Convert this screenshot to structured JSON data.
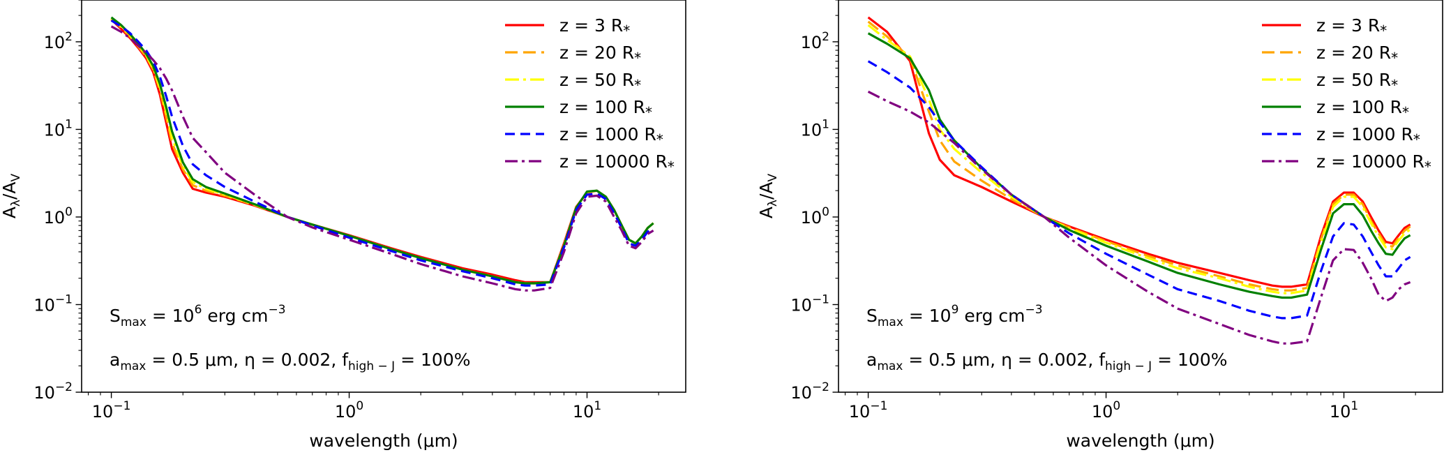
{
  "chart_data": [
    {
      "type": "line",
      "xscale": "log",
      "yscale": "log",
      "xlim": [
        0.075,
        26
      ],
      "ylim": [
        0.01,
        300
      ],
      "xlabel": "wavelength (μm)",
      "ylabel": {
        "base": "A",
        "sub1": "λ",
        "mid": "/A",
        "sub2": "V"
      },
      "xticks": [
        {
          "base": "10",
          "exp": "−1",
          "value": 0.1
        },
        {
          "base": "10",
          "exp": "0",
          "value": 1
        },
        {
          "base": "10",
          "exp": "1",
          "value": 10
        }
      ],
      "yticks": [
        {
          "base": "10",
          "exp": "−2",
          "value": 0.01
        },
        {
          "base": "10",
          "exp": "−1",
          "value": 0.1
        },
        {
          "base": "10",
          "exp": "0",
          "value": 1
        },
        {
          "base": "10",
          "exp": "1",
          "value": 10
        },
        {
          "base": "10",
          "exp": "2",
          "value": 100
        }
      ],
      "annotation1": {
        "s": "S",
        "sub": "max",
        "eq": " = 10",
        "sup": "6",
        "rest": " erg cm",
        "sup2": "−3"
      },
      "annotation2": {
        "a": "a",
        "asub": "max",
        "aval": " = 0.5 μm, η = 0.002, f",
        "fsub": "high − J",
        "fval": " = 100%"
      },
      "legend_position": "upper-right",
      "series": [
        {
          "name": "z = 3 R*",
          "label_main": "z = 3 R",
          "label_star": "*",
          "color": "#ff0000",
          "dash": "solid",
          "x": [
            0.1,
            0.11,
            0.12,
            0.13,
            0.14,
            0.15,
            0.16,
            0.17,
            0.18,
            0.2,
            0.22,
            0.25,
            0.3,
            0.4,
            0.55,
            0.7,
            1,
            1.5,
            2,
            3,
            4,
            5,
            5.5,
            6,
            7,
            8,
            9,
            10,
            11,
            12,
            13,
            14,
            15,
            16,
            17,
            18,
            19
          ],
          "y": [
            180,
            140,
            110,
            85,
            65,
            45,
            25,
            12,
            6,
            3.2,
            2.1,
            1.9,
            1.7,
            1.35,
            1.0,
            0.82,
            0.62,
            0.44,
            0.35,
            0.26,
            0.22,
            0.19,
            0.18,
            0.18,
            0.18,
            0.5,
            1.3,
            1.9,
            2.0,
            1.7,
            1.2,
            0.8,
            0.55,
            0.5,
            0.6,
            0.75,
            0.85
          ]
        },
        {
          "name": "z = 20 R*",
          "label_main": "z = 20 R",
          "label_star": "*",
          "color": "#ffa500",
          "dash": "18,8",
          "x": [
            0.1,
            0.11,
            0.12,
            0.13,
            0.14,
            0.15,
            0.16,
            0.17,
            0.18,
            0.2,
            0.22,
            0.25,
            0.3,
            0.4,
            0.55,
            0.7,
            1,
            1.5,
            2,
            3,
            4,
            5,
            5.5,
            6,
            7,
            8,
            9,
            10,
            11,
            12,
            13,
            14,
            15,
            16,
            17,
            18,
            19
          ],
          "y": [
            182,
            145,
            115,
            88,
            68,
            48,
            28,
            14,
            7,
            3.5,
            2.3,
            2.0,
            1.75,
            1.37,
            1.0,
            0.82,
            0.61,
            0.43,
            0.34,
            0.25,
            0.21,
            0.18,
            0.175,
            0.175,
            0.18,
            0.48,
            1.28,
            1.92,
            2.0,
            1.7,
            1.2,
            0.8,
            0.55,
            0.5,
            0.6,
            0.75,
            0.85
          ]
        },
        {
          "name": "z = 50 R*",
          "label_main": "z = 50 R",
          "label_star": "*",
          "color": "#ffff00",
          "dash": "20,6,4,6",
          "x": [
            0.1,
            0.11,
            0.12,
            0.13,
            0.14,
            0.15,
            0.16,
            0.17,
            0.18,
            0.2,
            0.22,
            0.25,
            0.3,
            0.4,
            0.55,
            0.7,
            1,
            1.5,
            2,
            3,
            4,
            5,
            5.5,
            6,
            7,
            8,
            9,
            10,
            11,
            12,
            13,
            14,
            15,
            16,
            17,
            18,
            19
          ],
          "y": [
            185,
            150,
            118,
            92,
            70,
            50,
            30,
            16,
            8,
            3.8,
            2.5,
            2.1,
            1.8,
            1.38,
            1.0,
            0.82,
            0.61,
            0.43,
            0.34,
            0.25,
            0.21,
            0.18,
            0.175,
            0.175,
            0.18,
            0.47,
            1.27,
            1.93,
            2.0,
            1.7,
            1.2,
            0.8,
            0.55,
            0.5,
            0.6,
            0.75,
            0.85
          ]
        },
        {
          "name": "z = 100 R*",
          "label_main": "z = 100 R",
          "label_star": "*",
          "color": "#008000",
          "dash": "solid",
          "x": [
            0.1,
            0.11,
            0.12,
            0.13,
            0.14,
            0.15,
            0.16,
            0.17,
            0.18,
            0.2,
            0.22,
            0.25,
            0.3,
            0.4,
            0.55,
            0.7,
            1,
            1.5,
            2,
            3,
            4,
            5,
            5.5,
            6,
            7,
            8,
            9,
            10,
            11,
            12,
            13,
            14,
            15,
            16,
            17,
            18,
            19
          ],
          "y": [
            190,
            155,
            122,
            95,
            73,
            53,
            33,
            18,
            9.5,
            4.2,
            2.7,
            2.2,
            1.85,
            1.4,
            1.0,
            0.82,
            0.61,
            0.43,
            0.34,
            0.25,
            0.21,
            0.18,
            0.175,
            0.175,
            0.18,
            0.47,
            1.27,
            1.95,
            2.0,
            1.7,
            1.2,
            0.8,
            0.55,
            0.5,
            0.6,
            0.75,
            0.85
          ]
        },
        {
          "name": "z = 1000 R*",
          "label_main": "z = 1000 R",
          "label_star": "*",
          "color": "#0000ff",
          "dash": "14,8",
          "x": [
            0.1,
            0.11,
            0.12,
            0.13,
            0.14,
            0.15,
            0.16,
            0.17,
            0.18,
            0.2,
            0.22,
            0.25,
            0.3,
            0.4,
            0.55,
            0.7,
            1,
            1.5,
            2,
            3,
            4,
            5,
            5.5,
            6,
            7,
            8,
            9,
            10,
            11,
            12,
            13,
            14,
            15,
            16,
            17,
            18,
            19
          ],
          "y": [
            175,
            150,
            125,
            100,
            80,
            60,
            40,
            24,
            14,
            6.5,
            4.0,
            3.0,
            2.2,
            1.5,
            1.0,
            0.8,
            0.58,
            0.41,
            0.32,
            0.24,
            0.2,
            0.17,
            0.165,
            0.165,
            0.17,
            0.45,
            1.2,
            1.8,
            1.85,
            1.6,
            1.1,
            0.75,
            0.5,
            0.47,
            0.55,
            0.68,
            0.75
          ]
        },
        {
          "name": "z = 10000 R*",
          "label_main": "z = 10000 R",
          "label_star": "*",
          "color": "#800080",
          "dash": "18,6,4,6",
          "x": [
            0.1,
            0.11,
            0.12,
            0.13,
            0.14,
            0.15,
            0.16,
            0.17,
            0.18,
            0.2,
            0.22,
            0.25,
            0.3,
            0.4,
            0.55,
            0.7,
            1,
            1.5,
            2,
            3,
            4,
            5,
            5.5,
            6,
            7,
            8,
            9,
            10,
            11,
            12,
            13,
            14,
            15,
            16,
            17,
            18,
            19
          ],
          "y": [
            150,
            130,
            110,
            90,
            75,
            62,
            50,
            38,
            28,
            14,
            8,
            5.5,
            3.2,
            1.8,
            1.0,
            0.76,
            0.55,
            0.38,
            0.29,
            0.21,
            0.175,
            0.15,
            0.145,
            0.145,
            0.155,
            0.4,
            1.1,
            1.7,
            1.75,
            1.5,
            1.0,
            0.7,
            0.47,
            0.44,
            0.52,
            0.64,
            0.7
          ]
        }
      ]
    },
    {
      "type": "line",
      "xscale": "log",
      "yscale": "log",
      "xlim": [
        0.075,
        26
      ],
      "ylim": [
        0.01,
        300
      ],
      "xlabel": "wavelength (μm)",
      "ylabel": {
        "base": "A",
        "sub1": "λ",
        "mid": "/A",
        "sub2": "V"
      },
      "xticks": [
        {
          "base": "10",
          "exp": "−1",
          "value": 0.1
        },
        {
          "base": "10",
          "exp": "0",
          "value": 1
        },
        {
          "base": "10",
          "exp": "1",
          "value": 10
        }
      ],
      "yticks": [
        {
          "base": "10",
          "exp": "−2",
          "value": 0.01
        },
        {
          "base": "10",
          "exp": "−1",
          "value": 0.1
        },
        {
          "base": "10",
          "exp": "0",
          "value": 1
        },
        {
          "base": "10",
          "exp": "1",
          "value": 10
        },
        {
          "base": "10",
          "exp": "2",
          "value": 100
        }
      ],
      "annotation1": {
        "s": "S",
        "sub": "max",
        "eq": " = 10",
        "sup": "9",
        "rest": " erg cm",
        "sup2": "−3"
      },
      "annotation2": {
        "a": "a",
        "asub": "max",
        "aval": " = 0.5 μm, η = 0.002, f",
        "fsub": "high − J",
        "fval": " = 100%"
      },
      "legend_position": "upper-right",
      "series": [
        {
          "name": "z = 3 R*",
          "label_main": "z = 3 R",
          "label_star": "*",
          "color": "#ff0000",
          "dash": "solid",
          "x": [
            0.1,
            0.12,
            0.15,
            0.18,
            0.2,
            0.23,
            0.3,
            0.4,
            0.55,
            0.7,
            1,
            1.5,
            2,
            3,
            4,
            5,
            5.5,
            6,
            7,
            8,
            9,
            10,
            11,
            12,
            13,
            14,
            15,
            16,
            17,
            18,
            19
          ],
          "y": [
            190,
            130,
            60,
            9,
            4.5,
            3.0,
            2.2,
            1.5,
            1.0,
            0.78,
            0.55,
            0.38,
            0.3,
            0.23,
            0.19,
            0.165,
            0.16,
            0.16,
            0.17,
            0.6,
            1.5,
            1.9,
            1.9,
            1.5,
            1.0,
            0.7,
            0.52,
            0.5,
            0.62,
            0.75,
            0.82
          ]
        },
        {
          "name": "z = 20 R*",
          "label_main": "z = 20 R",
          "label_star": "*",
          "color": "#ffa500",
          "dash": "18,8",
          "x": [
            0.1,
            0.12,
            0.15,
            0.18,
            0.2,
            0.23,
            0.3,
            0.4,
            0.55,
            0.7,
            1,
            1.5,
            2,
            3,
            4,
            5,
            5.5,
            6,
            7,
            8,
            9,
            10,
            11,
            12,
            13,
            14,
            15,
            16,
            17,
            18,
            19
          ],
          "y": [
            170,
            115,
            65,
            16,
            7.5,
            4.3,
            2.6,
            1.6,
            1.0,
            0.76,
            0.53,
            0.36,
            0.28,
            0.21,
            0.17,
            0.15,
            0.145,
            0.145,
            0.155,
            0.55,
            1.4,
            1.8,
            1.8,
            1.4,
            0.9,
            0.65,
            0.48,
            0.46,
            0.58,
            0.7,
            0.78
          ]
        },
        {
          "name": "z = 50 R*",
          "label_main": "z = 50 R",
          "label_star": "*",
          "color": "#ffff00",
          "dash": "20,6,4,6",
          "x": [
            0.1,
            0.12,
            0.15,
            0.18,
            0.2,
            0.23,
            0.3,
            0.4,
            0.55,
            0.7,
            1,
            1.5,
            2,
            3,
            4,
            5,
            5.5,
            6,
            7,
            8,
            9,
            10,
            11,
            12,
            13,
            14,
            15,
            16,
            17,
            18,
            19
          ],
          "y": [
            155,
            105,
            68,
            22,
            10,
            6,
            3.2,
            1.7,
            1.0,
            0.74,
            0.51,
            0.34,
            0.26,
            0.2,
            0.16,
            0.14,
            0.135,
            0.135,
            0.145,
            0.5,
            1.3,
            1.7,
            1.7,
            1.3,
            0.85,
            0.6,
            0.45,
            0.43,
            0.54,
            0.65,
            0.72
          ]
        },
        {
          "name": "z = 100 R*",
          "label_main": "z = 100 R",
          "label_star": "*",
          "color": "#008000",
          "dash": "solid",
          "x": [
            0.1,
            0.12,
            0.15,
            0.18,
            0.2,
            0.23,
            0.3,
            0.4,
            0.55,
            0.7,
            1,
            1.5,
            2,
            3,
            4,
            5,
            5.5,
            6,
            7,
            8,
            9,
            10,
            11,
            12,
            13,
            14,
            15,
            16,
            17,
            18,
            19
          ],
          "y": [
            125,
            95,
            65,
            28,
            13,
            7.5,
            3.6,
            1.8,
            1.0,
            0.71,
            0.47,
            0.31,
            0.23,
            0.17,
            0.14,
            0.125,
            0.12,
            0.12,
            0.13,
            0.42,
            1.1,
            1.4,
            1.4,
            1.05,
            0.7,
            0.5,
            0.38,
            0.37,
            0.47,
            0.57,
            0.62
          ]
        },
        {
          "name": "z = 1000 R*",
          "label_main": "z = 1000 R",
          "label_star": "*",
          "color": "#0000ff",
          "dash": "14,8",
          "x": [
            0.1,
            0.12,
            0.15,
            0.18,
            0.2,
            0.23,
            0.3,
            0.4,
            0.55,
            0.7,
            1,
            1.5,
            2,
            3,
            4,
            5,
            5.5,
            6,
            7,
            8,
            9,
            10,
            11,
            12,
            13,
            14,
            15,
            16,
            17,
            18,
            19
          ],
          "y": [
            60,
            45,
            30,
            18,
            12,
            7.5,
            3.7,
            1.8,
            1.0,
            0.65,
            0.38,
            0.22,
            0.15,
            0.11,
            0.085,
            0.073,
            0.07,
            0.07,
            0.075,
            0.24,
            0.6,
            0.85,
            0.82,
            0.6,
            0.4,
            0.28,
            0.21,
            0.21,
            0.26,
            0.32,
            0.35
          ]
        },
        {
          "name": "z = 10000 R*",
          "label_main": "z = 10000 R",
          "label_star": "*",
          "color": "#800080",
          "dash": "18,6,4,6",
          "x": [
            0.1,
            0.12,
            0.15,
            0.18,
            0.2,
            0.23,
            0.3,
            0.4,
            0.55,
            0.7,
            1,
            1.5,
            2,
            3,
            4,
            5,
            5.5,
            6,
            7,
            8,
            9,
            10,
            11,
            12,
            13,
            14,
            15,
            16,
            17,
            18,
            19
          ],
          "y": [
            27,
            21,
            16,
            12,
            9.5,
            7,
            3.5,
            1.8,
            1.0,
            0.58,
            0.28,
            0.14,
            0.09,
            0.06,
            0.045,
            0.038,
            0.036,
            0.036,
            0.038,
            0.12,
            0.32,
            0.43,
            0.42,
            0.3,
            0.2,
            0.13,
            0.11,
            0.12,
            0.15,
            0.17,
            0.18
          ]
        }
      ]
    }
  ]
}
